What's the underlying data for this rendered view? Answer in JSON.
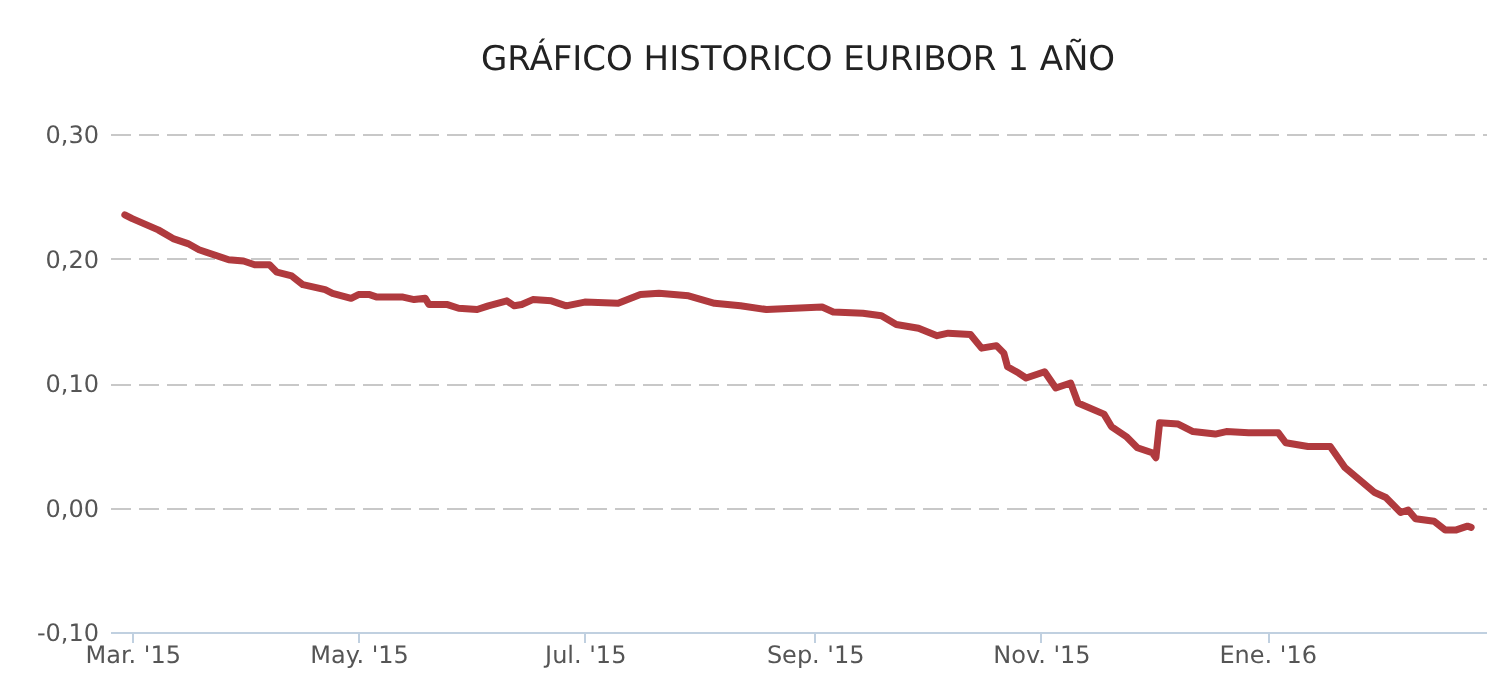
{
  "chart_data": {
    "type": "line",
    "title": "GRÁFICO HISTORICO EURIBOR 1 AÑO",
    "x": [
      "2015-02-27",
      "2015-03-01",
      "2015-03-08",
      "2015-03-12",
      "2015-03-16",
      "2015-03-19",
      "2015-03-27",
      "2015-03-31",
      "2015-04-03",
      "2015-04-07",
      "2015-04-09",
      "2015-04-13",
      "2015-04-16",
      "2015-04-22",
      "2015-04-24",
      "2015-04-29",
      "2015-05-01",
      "2015-05-04",
      "2015-05-06",
      "2015-05-13",
      "2015-05-16",
      "2015-05-19",
      "2015-05-20",
      "2015-05-25",
      "2015-05-28",
      "2015-06-02",
      "2015-06-05",
      "2015-06-10",
      "2015-06-12",
      "2015-06-14",
      "2015-06-17",
      "2015-06-22",
      "2015-06-26",
      "2015-07-01",
      "2015-07-10",
      "2015-07-16",
      "2015-07-21",
      "2015-07-29",
      "2015-08-05",
      "2015-08-12",
      "2015-08-19",
      "2015-09-03",
      "2015-09-06",
      "2015-09-14",
      "2015-09-19",
      "2015-09-23",
      "2015-09-29",
      "2015-10-04",
      "2015-10-07",
      "2015-10-13",
      "2015-10-16",
      "2015-10-20",
      "2015-10-22",
      "2015-10-23",
      "2015-10-26",
      "2015-10-28",
      "2015-11-02",
      "2015-11-05",
      "2015-11-09",
      "2015-11-11",
      "2015-11-18",
      "2015-11-20",
      "2015-11-24",
      "2015-11-27",
      "2015-12-01",
      "2015-12-02",
      "2015-12-03",
      "2015-12-08",
      "2015-12-12",
      "2015-12-18",
      "2015-12-21",
      "2015-12-27",
      "2016-01-04",
      "2016-01-06",
      "2016-01-12",
      "2016-01-18",
      "2016-01-22",
      "2016-01-26",
      "2016-01-30",
      "2016-02-02",
      "2016-02-06",
      "2016-02-08",
      "2016-02-10",
      "2016-02-15",
      "2016-02-18",
      "2016-02-21",
      "2016-02-24",
      "2016-02-25"
    ],
    "values": [
      0.235,
      0.232,
      0.223,
      0.216,
      0.212,
      0.207,
      0.199,
      0.198,
      0.195,
      0.195,
      0.189,
      0.186,
      0.179,
      0.175,
      0.172,
      0.168,
      0.171,
      0.171,
      0.169,
      0.169,
      0.167,
      0.168,
      0.163,
      0.163,
      0.16,
      0.159,
      0.162,
      0.166,
      0.162,
      0.163,
      0.167,
      0.166,
      0.162,
      0.165,
      0.164,
      0.171,
      0.172,
      0.17,
      0.164,
      0.162,
      0.159,
      0.161,
      0.157,
      0.156,
      0.154,
      0.147,
      0.144,
      0.138,
      0.14,
      0.139,
      0.128,
      0.13,
      0.124,
      0.113,
      0.108,
      0.104,
      0.109,
      0.096,
      0.1,
      0.084,
      0.075,
      0.065,
      0.057,
      0.048,
      0.044,
      0.04,
      0.068,
      0.067,
      0.061,
      0.059,
      0.061,
      0.06,
      0.06,
      0.052,
      0.049,
      0.049,
      0.032,
      0.022,
      0.012,
      0.008,
      -0.004,
      -0.002,
      -0.009,
      -0.011,
      -0.018,
      -0.018,
      -0.015,
      -0.016
    ],
    "color": "#b03a3e",
    "line_style": "solid",
    "grid": "y",
    "xlim": [
      "2015-02-23",
      "2016-02-29"
    ],
    "xticks": [
      {
        "value": "2015-03-01",
        "label": "Mar. '15"
      },
      {
        "value": "2015-05-01",
        "label": "May. '15"
      },
      {
        "value": "2015-07-01",
        "label": "Jul. '15"
      },
      {
        "value": "2015-09-01",
        "label": "Sep. '15"
      },
      {
        "value": "2015-11-01",
        "label": "Nov. '15"
      },
      {
        "value": "2016-01-01",
        "label": "Ene. '16"
      }
    ],
    "ylim": [
      -0.1,
      0.3
    ],
    "yticks": [
      {
        "value": -0.1,
        "label": "-0,10"
      },
      {
        "value": 0,
        "label": "0,00"
      },
      {
        "value": 0.1,
        "label": "0,10"
      },
      {
        "value": 0.2,
        "label": "0,20"
      },
      {
        "value": 0.3,
        "label": "0,30"
      }
    ]
  }
}
